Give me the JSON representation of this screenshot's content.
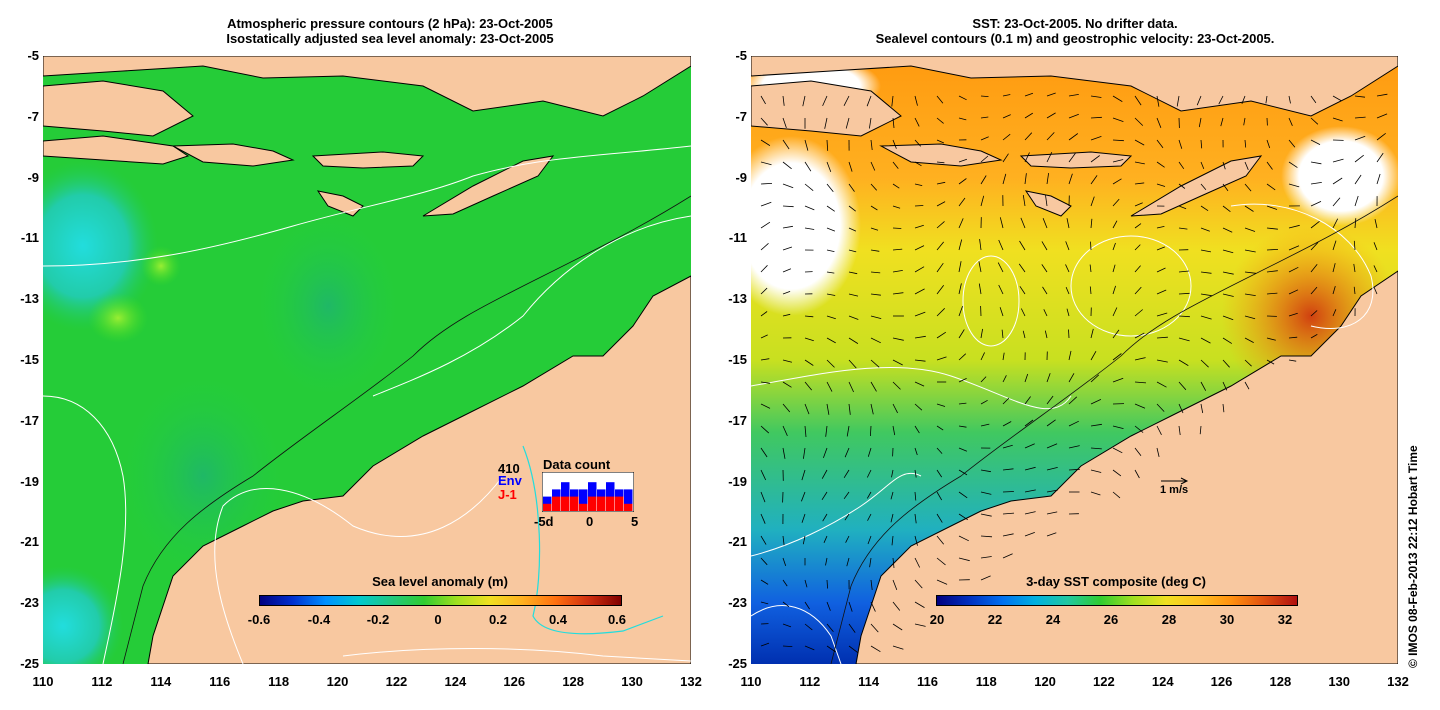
{
  "left_panel": {
    "title_line1": "Atmospheric pressure contours (2 hPa): 23-Oct-2005",
    "title_line2": "Isostatically adjusted sea level anomaly: 23-Oct-2005",
    "colorbar": {
      "label": "Sea level anomaly (m)",
      "ticks": [
        "-0.6",
        "-0.4",
        "-0.2",
        "0",
        "0.2",
        "0.4",
        "0.6"
      ],
      "range": [
        -0.6,
        0.6
      ]
    },
    "inset": {
      "total": "410",
      "env_label": "Env",
      "j1_label": "J-1",
      "title": "Data count",
      "x_ticks": [
        "-5d",
        "0",
        "5"
      ],
      "env_counts": [
        2,
        3,
        4,
        3,
        3,
        4,
        3,
        4,
        3,
        3
      ],
      "j1_counts": [
        1,
        2,
        2,
        2,
        1,
        2,
        2,
        2,
        2,
        1
      ],
      "env_color": "#0000ff",
      "j1_color": "#ff0000"
    }
  },
  "right_panel": {
    "title_line1": "SST: 23-Oct-2005. No drifter data.",
    "title_line2": "Sealevel contours (0.1 m) and geostrophic velocity: 23-Oct-2005.",
    "colorbar": {
      "label": "3-day SST composite (deg C)",
      "ticks": [
        "20",
        "22",
        "24",
        "26",
        "28",
        "30",
        "32"
      ],
      "range": [
        20,
        32.5
      ]
    },
    "scale_label": "1 m/s",
    "credit": "© IMOS 08-Feb-2013 22:12 Hobart Time"
  },
  "axes": {
    "y_ticks": [
      "-5",
      "-7",
      "-9",
      "-11",
      "-13",
      "-15",
      "-17",
      "-19",
      "-21",
      "-23",
      "-25"
    ],
    "x_ticks": [
      "110",
      "112",
      "114",
      "116",
      "118",
      "120",
      "122",
      "124",
      "126",
      "128",
      "130",
      "132"
    ],
    "lat_range": [
      -25,
      -5
    ],
    "lon_range": [
      110,
      132
    ]
  },
  "colors": {
    "land": "#f8c8a0",
    "sla_ocean": "#22cc33",
    "coast": "#000000"
  }
}
